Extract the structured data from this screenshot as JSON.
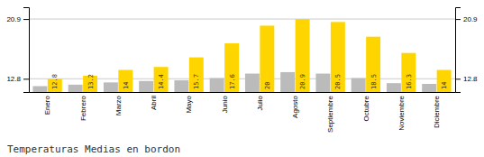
{
  "chart_data": {
    "type": "bar",
    "title": "Temperaturas Medias en bordon",
    "categories": [
      "Enero",
      "Febrero",
      "Marzo",
      "Abril",
      "Mayo",
      "Junio",
      "Julio",
      "Agosto",
      "Septiembre",
      "Octubre",
      "Noviembre",
      "Diciembre"
    ],
    "series": [
      {
        "color": "#BBBBBB",
        "values": [
          11.8,
          12.0,
          12.3,
          12.5,
          12.6,
          12.9,
          13.5,
          13.7,
          13.5,
          12.9,
          12.2,
          12.1
        ]
      },
      {
        "color": "#FFD500",
        "data_labels": true,
        "values": [
          12.8,
          13.2,
          14.0,
          14.4,
          15.7,
          17.6,
          20.0,
          20.9,
          20.5,
          18.5,
          16.3,
          14.0
        ]
      }
    ],
    "ylim": [
      11.0,
      22.5
    ],
    "yticks": [
      12.8,
      20.9
    ],
    "y2lim": [
      11.0,
      22.5
    ],
    "y2ticks": [
      12.8,
      20.9
    ],
    "grid": true
  }
}
